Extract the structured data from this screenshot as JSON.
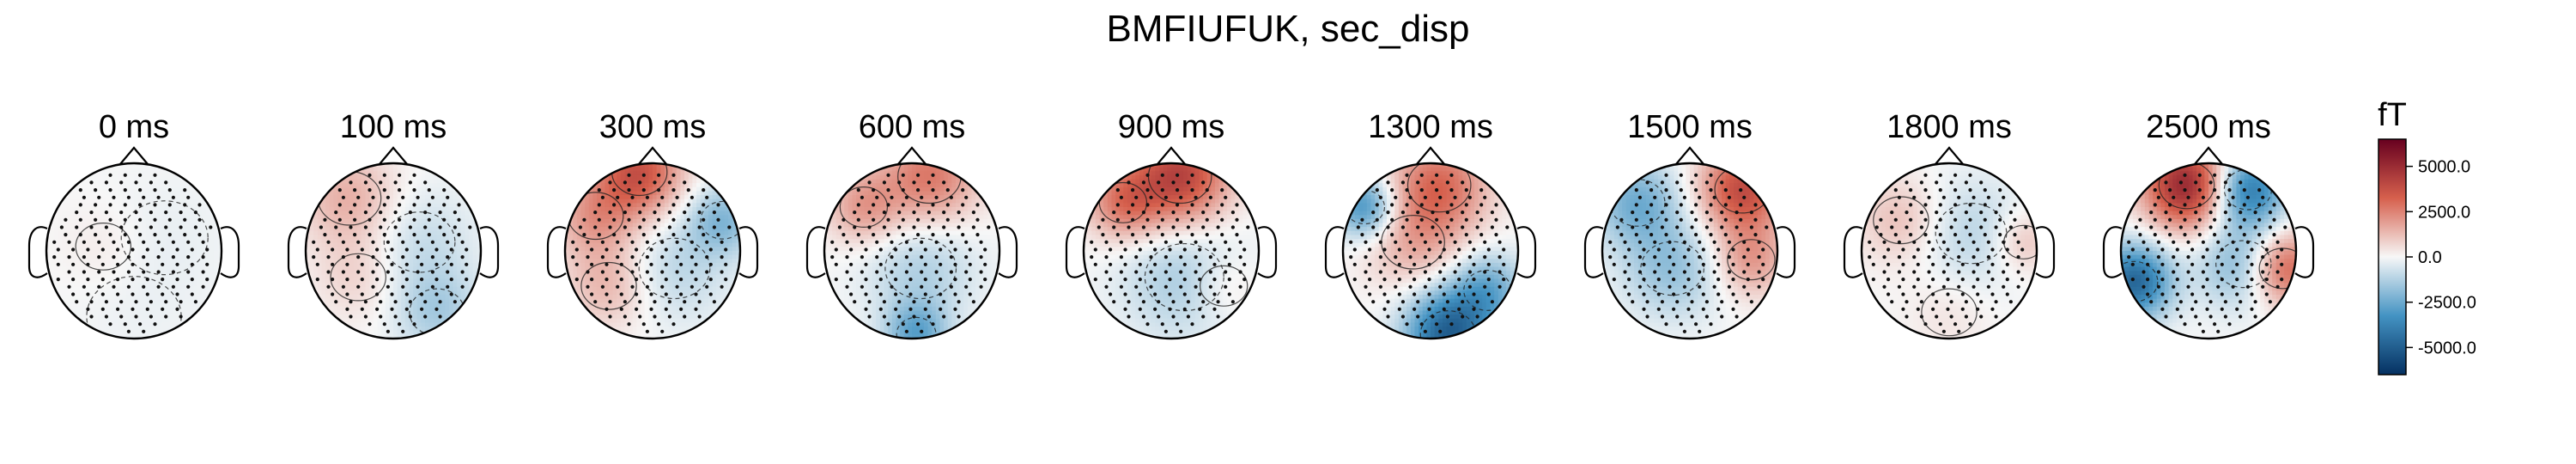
{
  "figure": {
    "title": "BMFIUFUK, sec_disp"
  },
  "chart_data": {
    "type": "heatmap",
    "title": "BMFIUFUK, sec_disp",
    "topomaps": [
      {
        "label": "0 ms",
        "intensity": 0.15,
        "blobs": [
          {
            "x": -0.35,
            "y": 0.05,
            "v": 0.35,
            "r": 0.35
          },
          {
            "x": 0.35,
            "y": 0.15,
            "v": -0.25,
            "r": 0.55
          },
          {
            "x": 0.0,
            "y": -0.75,
            "v": -0.15,
            "r": 0.6
          }
        ]
      },
      {
        "label": "100 ms",
        "intensity": 0.35,
        "blobs": [
          {
            "x": -0.5,
            "y": 0.6,
            "v": 0.7,
            "r": 0.4
          },
          {
            "x": -0.4,
            "y": -0.3,
            "v": 0.35,
            "r": 0.35
          },
          {
            "x": 0.3,
            "y": 0.1,
            "v": -0.4,
            "r": 0.45
          },
          {
            "x": 0.5,
            "y": -0.7,
            "v": -0.6,
            "r": 0.35
          }
        ]
      },
      {
        "label": "300 ms",
        "intensity": 0.55,
        "blobs": [
          {
            "x": -0.15,
            "y": 0.9,
            "v": 1.0,
            "r": 0.35
          },
          {
            "x": -0.65,
            "y": 0.4,
            "v": 0.55,
            "r": 0.35
          },
          {
            "x": 0.8,
            "y": 0.35,
            "v": -0.55,
            "r": 0.28
          },
          {
            "x": -0.5,
            "y": -0.4,
            "v": 0.4,
            "r": 0.35
          },
          {
            "x": 0.25,
            "y": -0.2,
            "v": -0.3,
            "r": 0.45
          }
        ]
      },
      {
        "label": "600 ms",
        "intensity": 0.5,
        "blobs": [
          {
            "x": 0.2,
            "y": 0.85,
            "v": 0.85,
            "r": 0.4
          },
          {
            "x": -0.55,
            "y": 0.5,
            "v": 0.6,
            "r": 0.3
          },
          {
            "x": 0.1,
            "y": -0.2,
            "v": -0.4,
            "r": 0.45
          },
          {
            "x": 0.05,
            "y": -0.95,
            "v": -0.8,
            "r": 0.25
          }
        ]
      },
      {
        "label": "900 ms",
        "intensity": 0.65,
        "blobs": [
          {
            "x": 0.1,
            "y": 0.85,
            "v": 1.0,
            "r": 0.4
          },
          {
            "x": -0.55,
            "y": 0.55,
            "v": 0.6,
            "r": 0.3
          },
          {
            "x": 0.15,
            "y": -0.3,
            "v": -0.35,
            "r": 0.5
          },
          {
            "x": 0.6,
            "y": -0.4,
            "v": 0.2,
            "r": 0.3
          }
        ]
      },
      {
        "label": "1300 ms",
        "intensity": 0.75,
        "blobs": [
          {
            "x": -0.75,
            "y": 0.5,
            "v": -0.7,
            "r": 0.25
          },
          {
            "x": 0.1,
            "y": 0.75,
            "v": 0.6,
            "r": 0.4
          },
          {
            "x": -0.2,
            "y": 0.1,
            "v": 0.3,
            "r": 0.4
          },
          {
            "x": 0.2,
            "y": -0.95,
            "v": -1.0,
            "r": 0.35
          },
          {
            "x": 0.65,
            "y": -0.45,
            "v": -0.5,
            "r": 0.3
          }
        ]
      },
      {
        "label": "1500 ms",
        "intensity": 0.6,
        "blobs": [
          {
            "x": 0.6,
            "y": 0.7,
            "v": 1.0,
            "r": 0.35
          },
          {
            "x": -0.6,
            "y": 0.55,
            "v": -0.6,
            "r": 0.35
          },
          {
            "x": -0.2,
            "y": -0.2,
            "v": -0.45,
            "r": 0.4
          },
          {
            "x": 0.7,
            "y": -0.1,
            "v": 0.5,
            "r": 0.3
          }
        ]
      },
      {
        "label": "1800 ms",
        "intensity": 0.35,
        "blobs": [
          {
            "x": -0.55,
            "y": 0.35,
            "v": 0.55,
            "r": 0.35
          },
          {
            "x": 0.85,
            "y": 0.1,
            "v": 0.55,
            "r": 0.25
          },
          {
            "x": 0.25,
            "y": 0.2,
            "v": -0.5,
            "r": 0.45
          },
          {
            "x": 0.0,
            "y": -0.7,
            "v": 0.2,
            "r": 0.35
          }
        ]
      },
      {
        "label": "2500 ms",
        "intensity": 0.8,
        "blobs": [
          {
            "x": -0.25,
            "y": 0.75,
            "v": 1.0,
            "r": 0.35
          },
          {
            "x": 0.45,
            "y": 0.7,
            "v": -0.8,
            "r": 0.3
          },
          {
            "x": -0.85,
            "y": -0.35,
            "v": -0.9,
            "r": 0.3
          },
          {
            "x": 0.4,
            "y": -0.15,
            "v": -0.45,
            "r": 0.35
          },
          {
            "x": 0.85,
            "y": -0.2,
            "v": 0.7,
            "r": 0.3
          }
        ]
      }
    ],
    "colorbar": {
      "label": "fT",
      "vmin": -6500,
      "vmax": 6500,
      "ticks": [
        {
          "value": 5000,
          "label": "5000.0"
        },
        {
          "value": 2500,
          "label": "2500.0"
        },
        {
          "value": 0,
          "label": "0.0"
        },
        {
          "value": -2500,
          "label": "-2500.0"
        },
        {
          "value": -5000,
          "label": "-5000.0"
        }
      ],
      "colors": {
        "high": "#67001f",
        "mid_high": "#d6604d",
        "neutral": "#f7f7f7",
        "mid_low": "#4393c3",
        "low": "#053061"
      }
    },
    "grid": false,
    "legend": "right"
  }
}
